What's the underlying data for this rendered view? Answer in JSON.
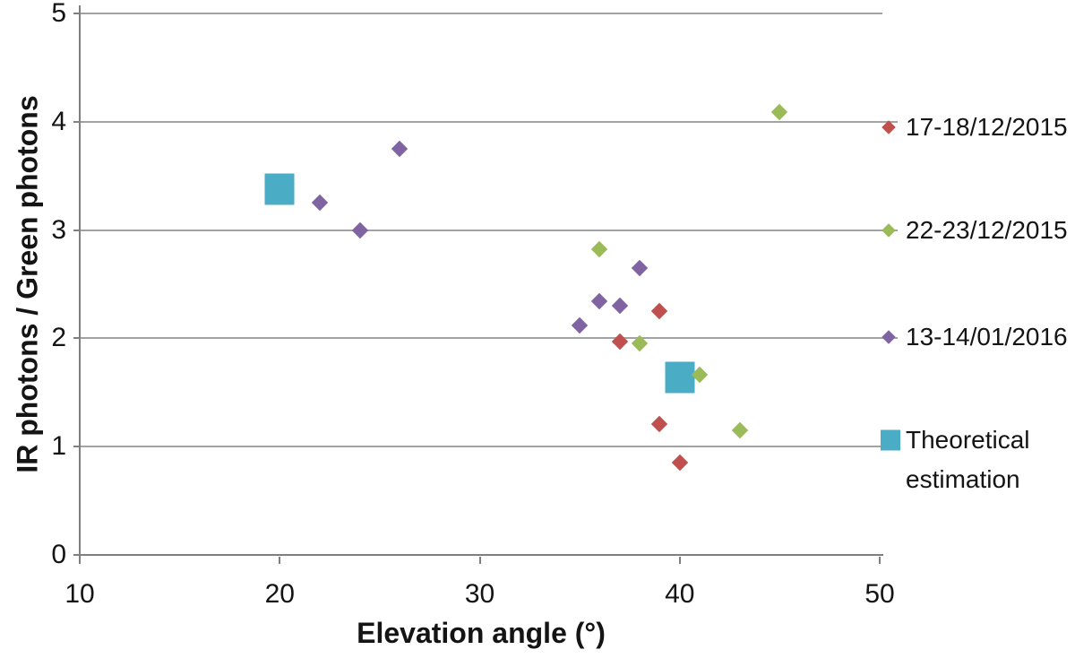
{
  "chart_data": {
    "type": "scatter",
    "title": "",
    "xlabel": "Elevation angle (°)",
    "ylabel": "IR photons / Green photons",
    "xlim": [
      10,
      50
    ],
    "ylim": [
      0,
      5
    ],
    "x_ticks": [
      10,
      20,
      30,
      40,
      50
    ],
    "y_ticks": [
      0,
      1,
      2,
      3,
      4,
      5
    ],
    "grid": "horizontal",
    "legend_position": "right",
    "series": [
      {
        "name": "17-18/12/2015",
        "color": "#C0504D",
        "marker": "diamond",
        "points": [
          [
            37,
            1.97
          ],
          [
            39,
            2.25
          ],
          [
            39,
            1.21
          ],
          [
            40,
            0.85
          ]
        ]
      },
      {
        "name": "22-23/12/2015",
        "color": "#9BBB59",
        "marker": "diamond",
        "points": [
          [
            36,
            2.82
          ],
          [
            38,
            1.95
          ],
          [
            41,
            1.66
          ],
          [
            43,
            1.15
          ],
          [
            45,
            4.09
          ]
        ]
      },
      {
        "name": "13-14/01/2016",
        "color": "#8064A2",
        "marker": "diamond",
        "points": [
          [
            22,
            3.25
          ],
          [
            24,
            3.0
          ],
          [
            26,
            3.75
          ],
          [
            35,
            2.12
          ],
          [
            36,
            2.34
          ],
          [
            37,
            2.3
          ],
          [
            38,
            2.65
          ]
        ]
      },
      {
        "name": "Theoretical estimation",
        "color": "#4BACC6",
        "marker": "square",
        "points": [
          [
            20,
            3.38
          ],
          [
            40,
            1.64
          ]
        ]
      }
    ]
  }
}
